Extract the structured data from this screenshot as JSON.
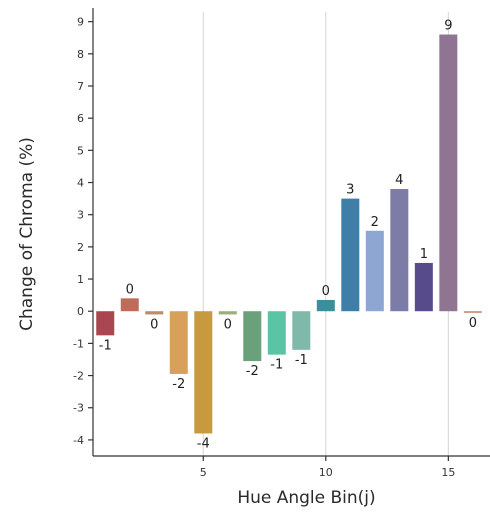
{
  "chart_data": {
    "type": "bar",
    "xlabel": "Hue Angle Bin(j)",
    "ylabel": "Change of Chroma (%)",
    "x": [
      1,
      2,
      3,
      4,
      5,
      6,
      7,
      8,
      9,
      10,
      11,
      12,
      13,
      14,
      15,
      16
    ],
    "values": [
      -0.75,
      0.4,
      -0.1,
      -1.95,
      -3.8,
      -0.1,
      -1.55,
      -1.35,
      -1.2,
      0.35,
      3.5,
      2.5,
      3.8,
      1.5,
      8.6,
      -0.05
    ],
    "data_labels": [
      "-1",
      "0",
      "0",
      "-2",
      "-4",
      "0",
      "-2",
      "-1",
      "-1",
      "0",
      "3",
      "2",
      "4",
      "1",
      "9",
      "0"
    ],
    "colors": [
      "#a9464f",
      "#c06a5a",
      "#b98e6e",
      "#d9a05b",
      "#c79a3e",
      "#9aae7b",
      "#6aa07a",
      "#5bc4a4",
      "#7fb9aa",
      "#3a8f9c",
      "#3f7ea6",
      "#8ea6d2",
      "#7d7ca6",
      "#574b8c",
      "#8f7592",
      "#c08a7a"
    ],
    "xticks": [
      5,
      10,
      15
    ],
    "yticks": [
      -4,
      -3,
      -2,
      -1,
      0,
      1,
      2,
      3,
      4,
      5,
      6,
      7,
      8,
      9
    ],
    "xlim": [
      0.5,
      16.7
    ],
    "ylim": [
      -4.5,
      9.3
    ],
    "grid": "vertical"
  },
  "axis_titles": {
    "x": "Hue Angle Bin(j)",
    "y": "Change of Chroma (%)"
  }
}
